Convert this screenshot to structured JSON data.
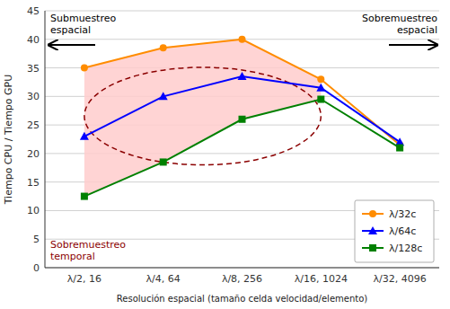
{
  "chart_data": {
    "type": "line",
    "xlabel": "Resolución espacial (tamaño celda velocidad/elemento)",
    "ylabel": "Tiempo CPU / Tiempo GPU",
    "categories": [
      "λ/2, 16",
      "λ/4, 64",
      "λ/8, 256",
      "λ/16, 1024",
      "λ/32, 4096"
    ],
    "series": [
      {
        "name": "λ/32c",
        "color": "#FF8C00",
        "marker": "circle",
        "values": [
          35,
          38.5,
          40,
          33,
          21.5
        ]
      },
      {
        "name": "λ/64c",
        "color": "#0000FF",
        "marker": "triangle",
        "values": [
          23,
          30,
          33.5,
          31.5,
          22
        ]
      },
      {
        "name": "λ/128c",
        "color": "#008000",
        "marker": "square",
        "values": [
          12.5,
          18.5,
          26,
          29.5,
          21
        ]
      }
    ],
    "ylim": [
      0,
      45
    ],
    "yticks": [
      0,
      5,
      10,
      15,
      20,
      25,
      30,
      35,
      40,
      45
    ],
    "grid": true,
    "legend": "lower right",
    "shade_color": "#ffcccc",
    "annotations": [
      {
        "text": "Submuestreo\nespacial"
      },
      {
        "text": "Sobremuestreo\nespacial"
      },
      {
        "text": "Sobremuestreo\ntemporal",
        "color": "#8B0000"
      }
    ]
  }
}
